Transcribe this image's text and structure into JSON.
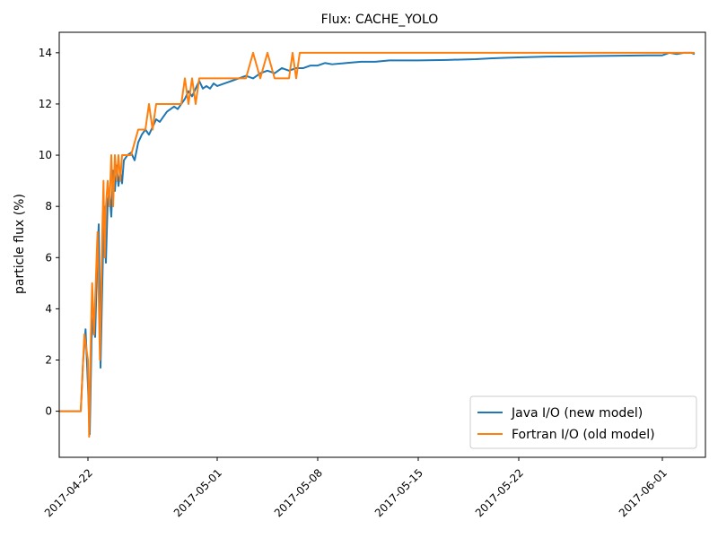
{
  "chart_data": {
    "type": "line",
    "title": "Flux: CACHE_YOLO",
    "xlabel": "",
    "ylabel": "particle flux (%)",
    "x_type": "date",
    "xlim": [
      "2017-04-20",
      "2017-06-04"
    ],
    "ylim": [
      -1.8,
      14.8
    ],
    "x_ticks": [
      "2017-04-22",
      "2017-05-01",
      "2017-05-08",
      "2017-05-15",
      "2017-05-22",
      "2017-06-01"
    ],
    "y_ticks": [
      0,
      2,
      4,
      6,
      8,
      10,
      12,
      14
    ],
    "grid": false,
    "legend_position": "lower-right",
    "series": [
      {
        "name": "Java I/O (new model)",
        "color": "#1f77b4",
        "points": [
          [
            "2017-04-20 00:00",
            0
          ],
          [
            "2017-04-21 12:00",
            0
          ],
          [
            "2017-04-21 16:00",
            2.0
          ],
          [
            "2017-04-21 20:00",
            3.2
          ],
          [
            "2017-04-22 00:00",
            1.0
          ],
          [
            "2017-04-22 03:00",
            -0.9
          ],
          [
            "2017-04-22 06:00",
            2.8
          ],
          [
            "2017-04-22 09:00",
            3.8
          ],
          [
            "2017-04-22 12:00",
            2.9
          ],
          [
            "2017-04-22 15:00",
            5.5
          ],
          [
            "2017-04-22 18:00",
            7.3
          ],
          [
            "2017-04-22 21:00",
            1.7
          ],
          [
            "2017-04-23 00:00",
            5.0
          ],
          [
            "2017-04-23 03:00",
            8.0
          ],
          [
            "2017-04-23 06:00",
            5.8
          ],
          [
            "2017-04-23 09:00",
            8.2
          ],
          [
            "2017-04-23 12:00",
            8.6
          ],
          [
            "2017-04-23 15:00",
            7.6
          ],
          [
            "2017-04-23 18:00",
            9.4
          ],
          [
            "2017-04-23 21:00",
            8.6
          ],
          [
            "2017-04-24 00:00",
            9.6
          ],
          [
            "2017-04-24 03:00",
            8.8
          ],
          [
            "2017-04-24 06:00",
            9.4
          ],
          [
            "2017-04-24 09:00",
            8.9
          ],
          [
            "2017-04-24 12:00",
            9.8
          ],
          [
            "2017-04-24 18:00",
            10.0
          ],
          [
            "2017-04-25 00:00",
            10.1
          ],
          [
            "2017-04-25 06:00",
            9.8
          ],
          [
            "2017-04-25 12:00",
            10.5
          ],
          [
            "2017-04-25 18:00",
            10.8
          ],
          [
            "2017-04-26 00:00",
            11.0
          ],
          [
            "2017-04-26 06:00",
            10.8
          ],
          [
            "2017-04-26 12:00",
            11.1
          ],
          [
            "2017-04-26 18:00",
            11.4
          ],
          [
            "2017-04-27 00:00",
            11.3
          ],
          [
            "2017-04-27 06:00",
            11.5
          ],
          [
            "2017-04-27 12:00",
            11.7
          ],
          [
            "2017-04-27 18:00",
            11.8
          ],
          [
            "2017-04-28 00:00",
            11.9
          ],
          [
            "2017-04-28 06:00",
            11.8
          ],
          [
            "2017-04-28 12:00",
            12.0
          ],
          [
            "2017-04-28 18:00",
            12.2
          ],
          [
            "2017-04-29 00:00",
            12.5
          ],
          [
            "2017-04-29 06:00",
            12.3
          ],
          [
            "2017-04-29 12:00",
            12.6
          ],
          [
            "2017-04-29 18:00",
            12.9
          ],
          [
            "2017-04-30 00:00",
            12.6
          ],
          [
            "2017-04-30 06:00",
            12.7
          ],
          [
            "2017-04-30 12:00",
            12.6
          ],
          [
            "2017-04-30 18:00",
            12.8
          ],
          [
            "2017-05-01 00:00",
            12.7
          ],
          [
            "2017-05-01 12:00",
            12.8
          ],
          [
            "2017-05-02 00:00",
            12.9
          ],
          [
            "2017-05-02 12:00",
            13.0
          ],
          [
            "2017-05-03 00:00",
            13.1
          ],
          [
            "2017-05-03 12:00",
            13.0
          ],
          [
            "2017-05-04 00:00",
            13.2
          ],
          [
            "2017-05-04 12:00",
            13.3
          ],
          [
            "2017-05-05 00:00",
            13.2
          ],
          [
            "2017-05-05 12:00",
            13.4
          ],
          [
            "2017-05-06 00:00",
            13.3
          ],
          [
            "2017-05-06 12:00",
            13.4
          ],
          [
            "2017-05-07 00:00",
            13.4
          ],
          [
            "2017-05-07 12:00",
            13.5
          ],
          [
            "2017-05-08 00:00",
            13.5
          ],
          [
            "2017-05-08 12:00",
            13.6
          ],
          [
            "2017-05-09 00:00",
            13.55
          ],
          [
            "2017-05-10 00:00",
            13.6
          ],
          [
            "2017-05-11 00:00",
            13.65
          ],
          [
            "2017-05-12 00:00",
            13.65
          ],
          [
            "2017-05-13 00:00",
            13.7
          ],
          [
            "2017-05-15 00:00",
            13.7
          ],
          [
            "2017-05-17 00:00",
            13.72
          ],
          [
            "2017-05-19 00:00",
            13.75
          ],
          [
            "2017-05-20 00:00",
            13.78
          ],
          [
            "2017-05-21 00:00",
            13.8
          ],
          [
            "2017-05-22 00:00",
            13.82
          ],
          [
            "2017-05-24 00:00",
            13.85
          ],
          [
            "2017-05-27 00:00",
            13.87
          ],
          [
            "2017-05-31 00:00",
            13.9
          ],
          [
            "2017-06-01 00:00",
            13.9
          ],
          [
            "2017-06-01 12:00",
            14.0
          ],
          [
            "2017-06-02 00:00",
            13.95
          ],
          [
            "2017-06-02 12:00",
            14.0
          ],
          [
            "2017-06-03 00:00",
            14.0
          ],
          [
            "2017-06-03 06:00",
            13.95
          ]
        ]
      },
      {
        "name": "Fortran I/O (old model)",
        "color": "#ff7f0e",
        "points": [
          [
            "2017-04-20 00:00",
            0
          ],
          [
            "2017-04-21 12:00",
            0
          ],
          [
            "2017-04-21 18:00",
            3.0
          ],
          [
            "2017-04-22 00:00",
            2.0
          ],
          [
            "2017-04-22 02:00",
            -1.0
          ],
          [
            "2017-04-22 05:00",
            3.0
          ],
          [
            "2017-04-22 07:00",
            5.0
          ],
          [
            "2017-04-22 10:00",
            3.0
          ],
          [
            "2017-04-22 13:00",
            5.0
          ],
          [
            "2017-04-22 16:00",
            7.0
          ],
          [
            "2017-04-22 20:00",
            2.0
          ],
          [
            "2017-04-23 00:00",
            7.0
          ],
          [
            "2017-04-23 02:00",
            9.0
          ],
          [
            "2017-04-23 04:00",
            6.0
          ],
          [
            "2017-04-23 06:00",
            8.0
          ],
          [
            "2017-04-23 09:00",
            9.0
          ],
          [
            "2017-04-23 12:00",
            8.0
          ],
          [
            "2017-04-23 15:00",
            10.0
          ],
          [
            "2017-04-23 18:00",
            8.0
          ],
          [
            "2017-04-23 21:00",
            10.0
          ],
          [
            "2017-04-24 00:00",
            9.0
          ],
          [
            "2017-04-24 03:00",
            10.0
          ],
          [
            "2017-04-24 06:00",
            9.0
          ],
          [
            "2017-04-24 09:00",
            10.0
          ],
          [
            "2017-04-25 00:00",
            10.0
          ],
          [
            "2017-04-25 12:00",
            11.0
          ],
          [
            "2017-04-26 00:00",
            11.0
          ],
          [
            "2017-04-26 06:00",
            12.0
          ],
          [
            "2017-04-26 12:00",
            11.0
          ],
          [
            "2017-04-26 18:00",
            12.0
          ],
          [
            "2017-04-28 12:00",
            12.0
          ],
          [
            "2017-04-28 18:00",
            13.0
          ],
          [
            "2017-04-29 00:00",
            12.0
          ],
          [
            "2017-04-29 06:00",
            13.0
          ],
          [
            "2017-04-29 12:00",
            12.0
          ],
          [
            "2017-04-29 18:00",
            13.0
          ],
          [
            "2017-05-02 12:00",
            13.0
          ],
          [
            "2017-05-03 00:00",
            13.0
          ],
          [
            "2017-05-03 12:00",
            14.0
          ],
          [
            "2017-05-04 00:00",
            13.0
          ],
          [
            "2017-05-04 12:00",
            14.0
          ],
          [
            "2017-05-05 00:00",
            13.0
          ],
          [
            "2017-05-06 00:00",
            13.0
          ],
          [
            "2017-05-06 06:00",
            14.0
          ],
          [
            "2017-05-06 12:00",
            13.0
          ],
          [
            "2017-05-06 18:00",
            14.0
          ],
          [
            "2017-05-07 00:00",
            14.0
          ],
          [
            "2017-06-03 06:00",
            14.0
          ]
        ]
      }
    ]
  }
}
